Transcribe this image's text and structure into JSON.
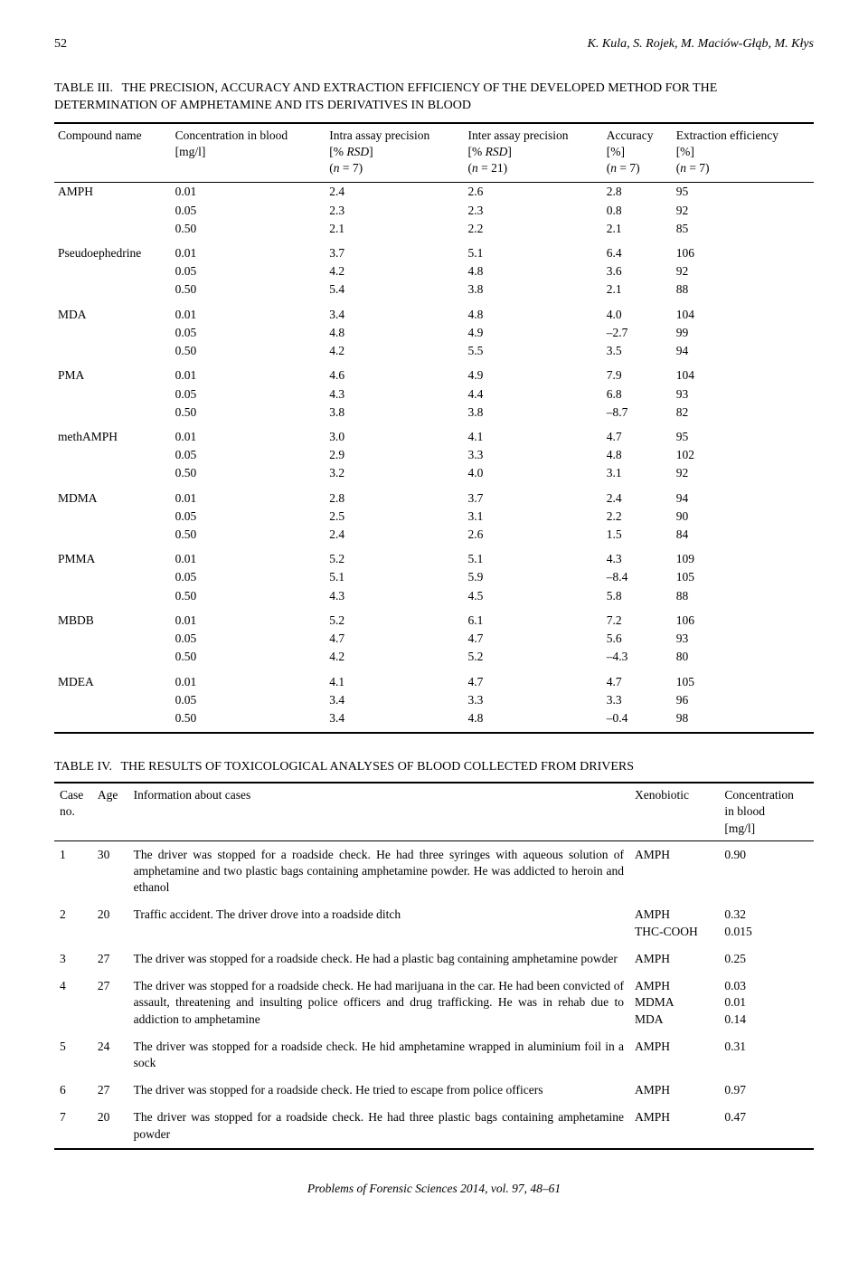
{
  "header": {
    "page_number": "52",
    "authors": "K. Kula, S. Rojek, M. Maciów-Głąb, M. Kłys"
  },
  "table3": {
    "type": "table",
    "label": "TABLE III.",
    "title": "THE PRECISION, ACCURACY AND EXTRACTION EFFICIENCY OF THE DEVELOPED METHOD FOR THE DETERMINATION OF AMPHETAMINE AND ITS DERIVATIVES IN BLOOD",
    "columns": {
      "c0": "Compound name",
      "c1": {
        "l1": "Concentration in blood",
        "l2": "[mg/l]"
      },
      "c2": {
        "l1": "Intra assay precision",
        "l2": "[% RSD]",
        "l3": "(n = 7)"
      },
      "c3": {
        "l1": "Inter assay precision",
        "l2": "[% RSD]",
        "l3": "(n = 21)"
      },
      "c4": {
        "l1": "Accuracy",
        "l2": "[%]",
        "l3": "(n = 7)"
      },
      "c5": {
        "l1": "Extraction efficiency",
        "l2": "[%]",
        "l3": "(n = 7)"
      }
    },
    "groups": [
      {
        "name": "AMPH",
        "rows": [
          {
            "conc": "0.01",
            "intra": "2.4",
            "inter": "2.6",
            "acc": "2.8",
            "ext": "95"
          },
          {
            "conc": "0.05",
            "intra": "2.3",
            "inter": "2.3",
            "acc": "0.8",
            "ext": "92"
          },
          {
            "conc": "0.50",
            "intra": "2.1",
            "inter": "2.2",
            "acc": "2.1",
            "ext": "85"
          }
        ]
      },
      {
        "name": "Pseudoephedrine",
        "rows": [
          {
            "conc": "0.01",
            "intra": "3.7",
            "inter": "5.1",
            "acc": "6.4",
            "ext": "106"
          },
          {
            "conc": "0.05",
            "intra": "4.2",
            "inter": "4.8",
            "acc": "3.6",
            "ext": "92"
          },
          {
            "conc": "0.50",
            "intra": "5.4",
            "inter": "3.8",
            "acc": "2.1",
            "ext": "88"
          }
        ]
      },
      {
        "name": "MDA",
        "rows": [
          {
            "conc": "0.01",
            "intra": "3.4",
            "inter": "4.8",
            "acc": "4.0",
            "ext": "104"
          },
          {
            "conc": "0.05",
            "intra": "4.8",
            "inter": "4.9",
            "acc": "–2.7",
            "ext": "99"
          },
          {
            "conc": "0.50",
            "intra": "4.2",
            "inter": "5.5",
            "acc": "3.5",
            "ext": "94"
          }
        ]
      },
      {
        "name": "PMA",
        "rows": [
          {
            "conc": "0.01",
            "intra": "4.6",
            "inter": "4.9",
            "acc": "7.9",
            "ext": "104"
          },
          {
            "conc": "0.05",
            "intra": "4.3",
            "inter": "4.4",
            "acc": "6.8",
            "ext": "93"
          },
          {
            "conc": "0.50",
            "intra": "3.8",
            "inter": "3.8",
            "acc": "–8.7",
            "ext": "82"
          }
        ]
      },
      {
        "name": "methAMPH",
        "rows": [
          {
            "conc": "0.01",
            "intra": "3.0",
            "inter": "4.1",
            "acc": "4.7",
            "ext": "95"
          },
          {
            "conc": "0.05",
            "intra": "2.9",
            "inter": "3.3",
            "acc": "4.8",
            "ext": "102"
          },
          {
            "conc": "0.50",
            "intra": "3.2",
            "inter": "4.0",
            "acc": "3.1",
            "ext": "92"
          }
        ]
      },
      {
        "name": "MDMA",
        "rows": [
          {
            "conc": "0.01",
            "intra": "2.8",
            "inter": "3.7",
            "acc": "2.4",
            "ext": "94"
          },
          {
            "conc": "0.05",
            "intra": "2.5",
            "inter": "3.1",
            "acc": "2.2",
            "ext": "90"
          },
          {
            "conc": "0.50",
            "intra": "2.4",
            "inter": "2.6",
            "acc": "1.5",
            "ext": "84"
          }
        ]
      },
      {
        "name": "PMMA",
        "rows": [
          {
            "conc": "0.01",
            "intra": "5.2",
            "inter": "5.1",
            "acc": "4.3",
            "ext": "109"
          },
          {
            "conc": "0.05",
            "intra": "5.1",
            "inter": "5.9",
            "acc": "–8.4",
            "ext": "105"
          },
          {
            "conc": "0.50",
            "intra": "4.3",
            "inter": "4.5",
            "acc": "5.8",
            "ext": "88"
          }
        ]
      },
      {
        "name": "MBDB",
        "rows": [
          {
            "conc": "0.01",
            "intra": "5.2",
            "inter": "6.1",
            "acc": "7.2",
            "ext": "106"
          },
          {
            "conc": "0.05",
            "intra": "4.7",
            "inter": "4.7",
            "acc": "5.6",
            "ext": "93"
          },
          {
            "conc": "0.50",
            "intra": "4.2",
            "inter": "5.2",
            "acc": "–4.3",
            "ext": "80"
          }
        ]
      },
      {
        "name": "MDEA",
        "rows": [
          {
            "conc": "0.01",
            "intra": "4.1",
            "inter": "4.7",
            "acc": "4.7",
            "ext": "105"
          },
          {
            "conc": "0.05",
            "intra": "3.4",
            "inter": "3.3",
            "acc": "3.3",
            "ext": "96"
          },
          {
            "conc": "0.50",
            "intra": "3.4",
            "inter": "4.8",
            "acc": "–0.4",
            "ext": "98"
          }
        ]
      }
    ]
  },
  "table4": {
    "type": "table",
    "label": "TABLE IV.",
    "title": "THE RESULTS OF TOXICOLOGICAL ANALYSES OF BLOOD COLLECTED FROM DRIVERS",
    "columns": {
      "c0": "Case no.",
      "c1": "Age",
      "c2": "Information about cases",
      "c3": "Xenobiotic",
      "c4": {
        "l1": "Concentration",
        "l2": "in blood",
        "l3": "[mg/l]"
      }
    },
    "rows": [
      {
        "case": "1",
        "age": "30",
        "info": "The driver was stopped for a roadside check. He had three syringes with aqueous solution of amphetamine and two plastic bags containing amphetamine powder. He was addicted to heroin and ethanol",
        "xeno": [
          "AMPH"
        ],
        "conc": [
          "0.90"
        ]
      },
      {
        "case": "2",
        "age": "20",
        "info": "Traffic accident. The driver drove into a roadside ditch",
        "xeno": [
          "AMPH",
          "THC-COOH"
        ],
        "conc": [
          "0.32",
          "0.015"
        ]
      },
      {
        "case": "3",
        "age": "27",
        "info": "The driver was stopped for a roadside check. He had a plastic bag containing amphetamine powder",
        "xeno": [
          "AMPH"
        ],
        "conc": [
          "0.25"
        ]
      },
      {
        "case": "4",
        "age": "27",
        "info": "The driver was stopped for a roadside check. He had marijuana in the car. He had been convicted of assault, threatening and insulting police officers and drug trafficking. He was in rehab due to addiction to amphetamine",
        "xeno": [
          "AMPH",
          "MDMA",
          "MDA"
        ],
        "conc": [
          "0.03",
          "0.01",
          "0.14"
        ]
      },
      {
        "case": "5",
        "age": "24",
        "info": "The driver was stopped for a roadside check. He hid amphetamine wrapped in aluminium foil in a sock",
        "xeno": [
          "AMPH"
        ],
        "conc": [
          "0.31"
        ]
      },
      {
        "case": "6",
        "age": "27",
        "info": "The driver was stopped for a roadside check. He tried to escape from police officers",
        "xeno": [
          "AMPH"
        ],
        "conc": [
          "0.97"
        ]
      },
      {
        "case": "7",
        "age": "20",
        "info": "The driver was stopped for a roadside check. He had three plastic bags containing amphetamine powder",
        "xeno": [
          "AMPH"
        ],
        "conc": [
          "0.47"
        ]
      }
    ]
  },
  "footer": {
    "text": "Problems of Forensic Sciences 2014, vol. 97, 48–61"
  }
}
